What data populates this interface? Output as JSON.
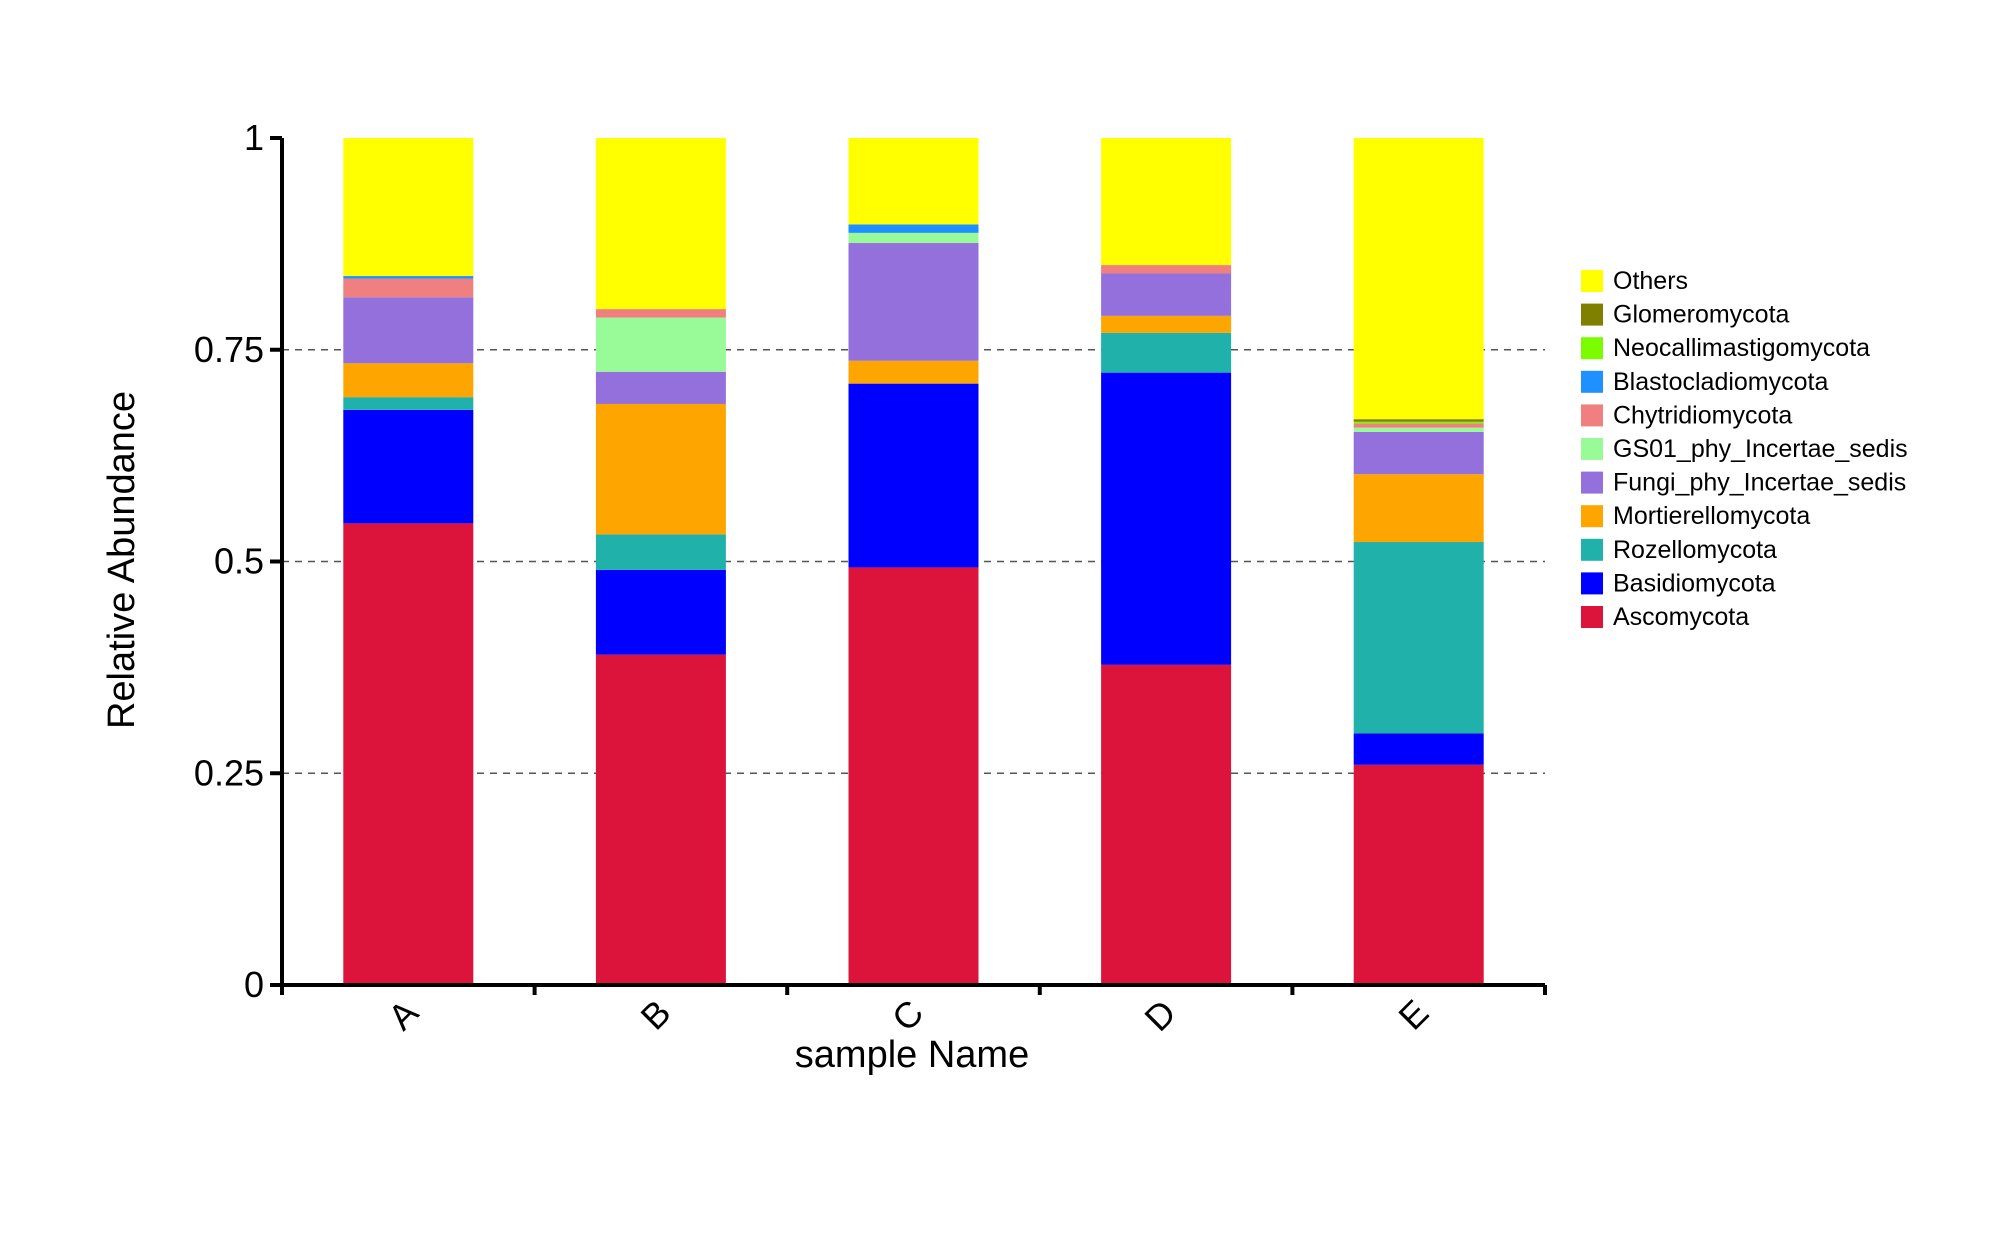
{
  "chart_data": {
    "type": "bar",
    "stacked": true,
    "title": "",
    "xlabel": "sample Name",
    "ylabel": "Relative Abundance",
    "ylim": [
      0,
      1
    ],
    "yticks": [
      "0",
      "0.25",
      "0.5",
      "0.75",
      "1"
    ],
    "ytick_values": [
      0,
      0.25,
      0.5,
      0.75,
      1
    ],
    "grid": "horizontal dashed at 0.25, 0.5, 0.75",
    "legend_position": "right",
    "categories": [
      "A",
      "B",
      "C",
      "D",
      "E"
    ],
    "series": [
      {
        "name": "Ascomycota",
        "color": "#dc143c",
        "values": [
          0.545,
          0.39,
          0.493,
          0.378,
          0.26
        ]
      },
      {
        "name": "Basidiomycota",
        "color": "#0000ff",
        "values": [
          0.134,
          0.1,
          0.217,
          0.345,
          0.037
        ]
      },
      {
        "name": "Rozellomycota",
        "color": "#20b2aa",
        "values": [
          0.015,
          0.042,
          0.0,
          0.047,
          0.226
        ]
      },
      {
        "name": "Mortierellomycota",
        "color": "#ffa500",
        "values": [
          0.04,
          0.154,
          0.027,
          0.02,
          0.08
        ]
      },
      {
        "name": "Fungi_phy_Incertae_sedis",
        "color": "#9370db",
        "values": [
          0.078,
          0.038,
          0.139,
          0.05,
          0.05
        ]
      },
      {
        "name": "GS01_phy_Incertae_sedis",
        "color": "#98fb98",
        "values": [
          0.0,
          0.064,
          0.012,
          0.0,
          0.005
        ]
      },
      {
        "name": "Chytridiomycota",
        "color": "#f08080",
        "values": [
          0.022,
          0.01,
          0.0,
          0.01,
          0.005
        ]
      },
      {
        "name": "Blastocladiomycota",
        "color": "#1e90ff",
        "values": [
          0.003,
          0.0,
          0.01,
          0.0,
          0.0
        ]
      },
      {
        "name": "Neocallimastigomycota",
        "color": "#7cfc00",
        "values": [
          0.0,
          0.0,
          0.0,
          0.0,
          0.002
        ]
      },
      {
        "name": "Glomeromycota",
        "color": "#808000",
        "values": [
          0.0,
          0.0,
          0.0,
          0.0,
          0.003
        ]
      },
      {
        "name": "Others",
        "color": "#ffff00",
        "values": [
          0.163,
          0.202,
          0.102,
          0.15,
          0.332
        ]
      }
    ],
    "legend_order": [
      "Others",
      "Glomeromycota",
      "Neocallimastigomycota",
      "Blastocladiomycota",
      "Chytridiomycota",
      "GS01_phy_Incertae_sedis",
      "Fungi_phy_Incertae_sedis",
      "Mortierellomycota",
      "Rozellomycota",
      "Basidiomycota",
      "Ascomycota"
    ]
  }
}
